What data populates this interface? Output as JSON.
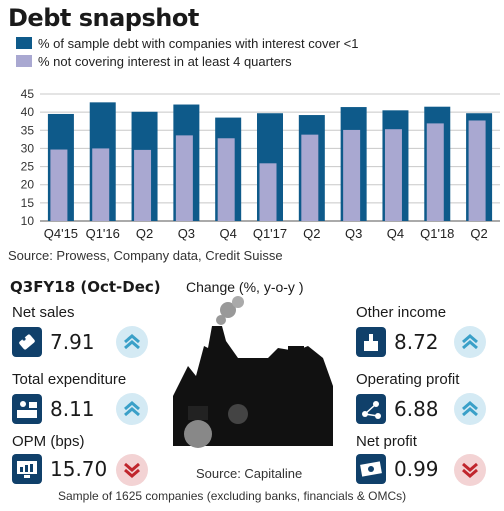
{
  "chart_data": {
    "type": "bar",
    "title": "Debt snapshot",
    "categories": [
      "Q4'15",
      "Q1'16",
      "Q2",
      "Q3",
      "Q4",
      "Q1'17",
      "Q2",
      "Q3",
      "Q4",
      "Q1'18",
      "Q2"
    ],
    "series": [
      {
        "name": "% of sample debt with companies with interest cover <1",
        "color": "#0e5a8a",
        "values": [
          39.5,
          42.7,
          40.1,
          42.1,
          38.5,
          39.7,
          39.2,
          41.4,
          40.5,
          41.5,
          39.7
        ]
      },
      {
        "name": "% not covering interest in at least 4 quarters",
        "color": "#a9a8d1",
        "values": [
          29.7,
          30.0,
          29.6,
          33.6,
          32.8,
          25.9,
          33.8,
          35.1,
          35.3,
          36.9,
          37.7
        ]
      }
    ],
    "yticks": [
      10,
      15,
      20,
      25,
      30,
      35,
      40,
      45
    ],
    "ylim": [
      10,
      45
    ],
    "bar_layout": "overlapping",
    "grid": "horizontal",
    "legend_position": "top-left",
    "source": "Source: Prowess, Company data, Credit Suisse"
  },
  "panel": {
    "title": "Q3FY18 (Oct-Dec)",
    "subtitle": "Change (%, y-o-y )",
    "source": "Source: Capitaline",
    "footnote": "Sample of 1625 companies (excluding banks, financials & OMCs)",
    "colors": {
      "up": "#5ba6c6",
      "down": "#c0262d",
      "icon_bg": "#10406a"
    },
    "metrics": [
      {
        "label": "Net sales",
        "value": "7.91",
        "value_number": 7.91,
        "direction": "up",
        "icon": "tag-icon"
      },
      {
        "label": "Total expenditure",
        "value": "8.11",
        "value_number": 8.11,
        "direction": "up",
        "icon": "expenditure-icon"
      },
      {
        "label": "OPM (bps)",
        "value": "15.70",
        "value_number": 15.7,
        "direction": "down",
        "icon": "monitor-chart-icon"
      },
      {
        "label": "Other income",
        "value": "8.72",
        "value_number": 8.72,
        "direction": "up",
        "icon": "income-icon"
      },
      {
        "label": "Operating profit",
        "value": "6.88",
        "value_number": 6.88,
        "direction": "up",
        "icon": "network-icon"
      },
      {
        "label": "Net profit",
        "value": "0.99",
        "value_number": 0.99,
        "direction": "down",
        "icon": "cash-icon"
      }
    ]
  }
}
